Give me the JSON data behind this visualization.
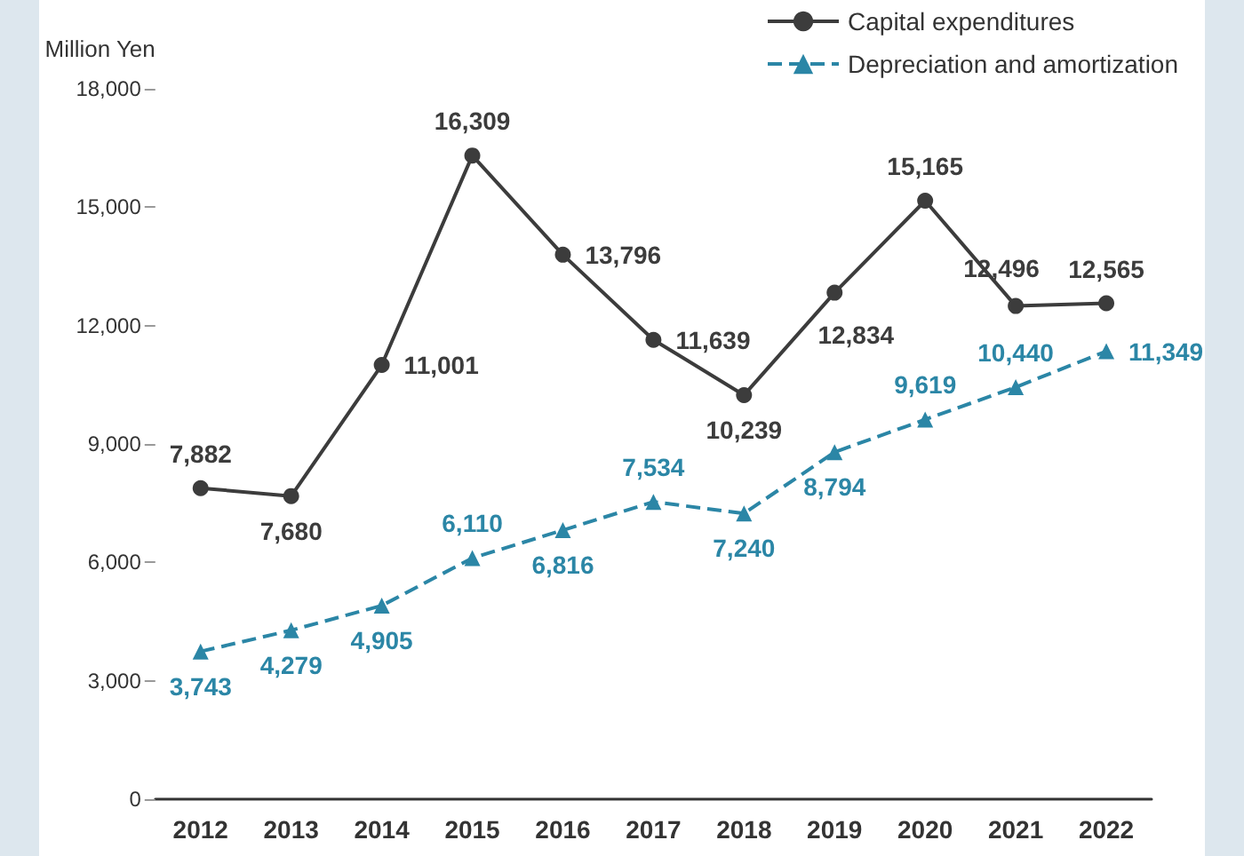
{
  "chart_data": {
    "type": "line",
    "ylabel": "Million Yen",
    "categories": [
      "2012",
      "2013",
      "2014",
      "2015",
      "2016",
      "2017",
      "2018",
      "2019",
      "2020",
      "2021",
      "2022"
    ],
    "series": [
      {
        "name": "Capital expenditures",
        "color": "#3c3c3c",
        "marker": "circle",
        "line_style": "solid",
        "values": [
          7882,
          7680,
          11001,
          16309,
          13796,
          11639,
          10239,
          12834,
          15165,
          12496,
          12565
        ],
        "value_labels": [
          "7,882",
          "7,680",
          "11,001",
          "16,309",
          "13,796",
          "11,639",
          "10,239",
          "12,834",
          "15,165",
          "12,496",
          "12,565"
        ]
      },
      {
        "name": "Depreciation and amortization",
        "color": "#2b86a6",
        "marker": "triangle",
        "line_style": "dashed",
        "values": [
          3743,
          4279,
          4905,
          6110,
          6816,
          7534,
          7240,
          8794,
          9619,
          10440,
          11349
        ],
        "value_labels": [
          "3,743",
          "4,279",
          "4,905",
          "6,110",
          "6,816",
          "7,534",
          "7,240",
          "8,794",
          "9,619",
          "10,440",
          "11,349"
        ]
      }
    ],
    "ylim": [
      0,
      18000
    ],
    "yticks": [
      0,
      {
        "value": 3000,
        "label": "3,000"
      },
      {
        "value": 6000,
        "label": "6,000"
      },
      {
        "value": 9000,
        "label": "9,000"
      },
      {
        "value": 12000,
        "label": "12,000"
      },
      {
        "value": 15000,
        "label": "15,000"
      },
      {
        "value": 18000,
        "label": "18,000"
      }
    ],
    "grid": false,
    "legend": "top right"
  }
}
